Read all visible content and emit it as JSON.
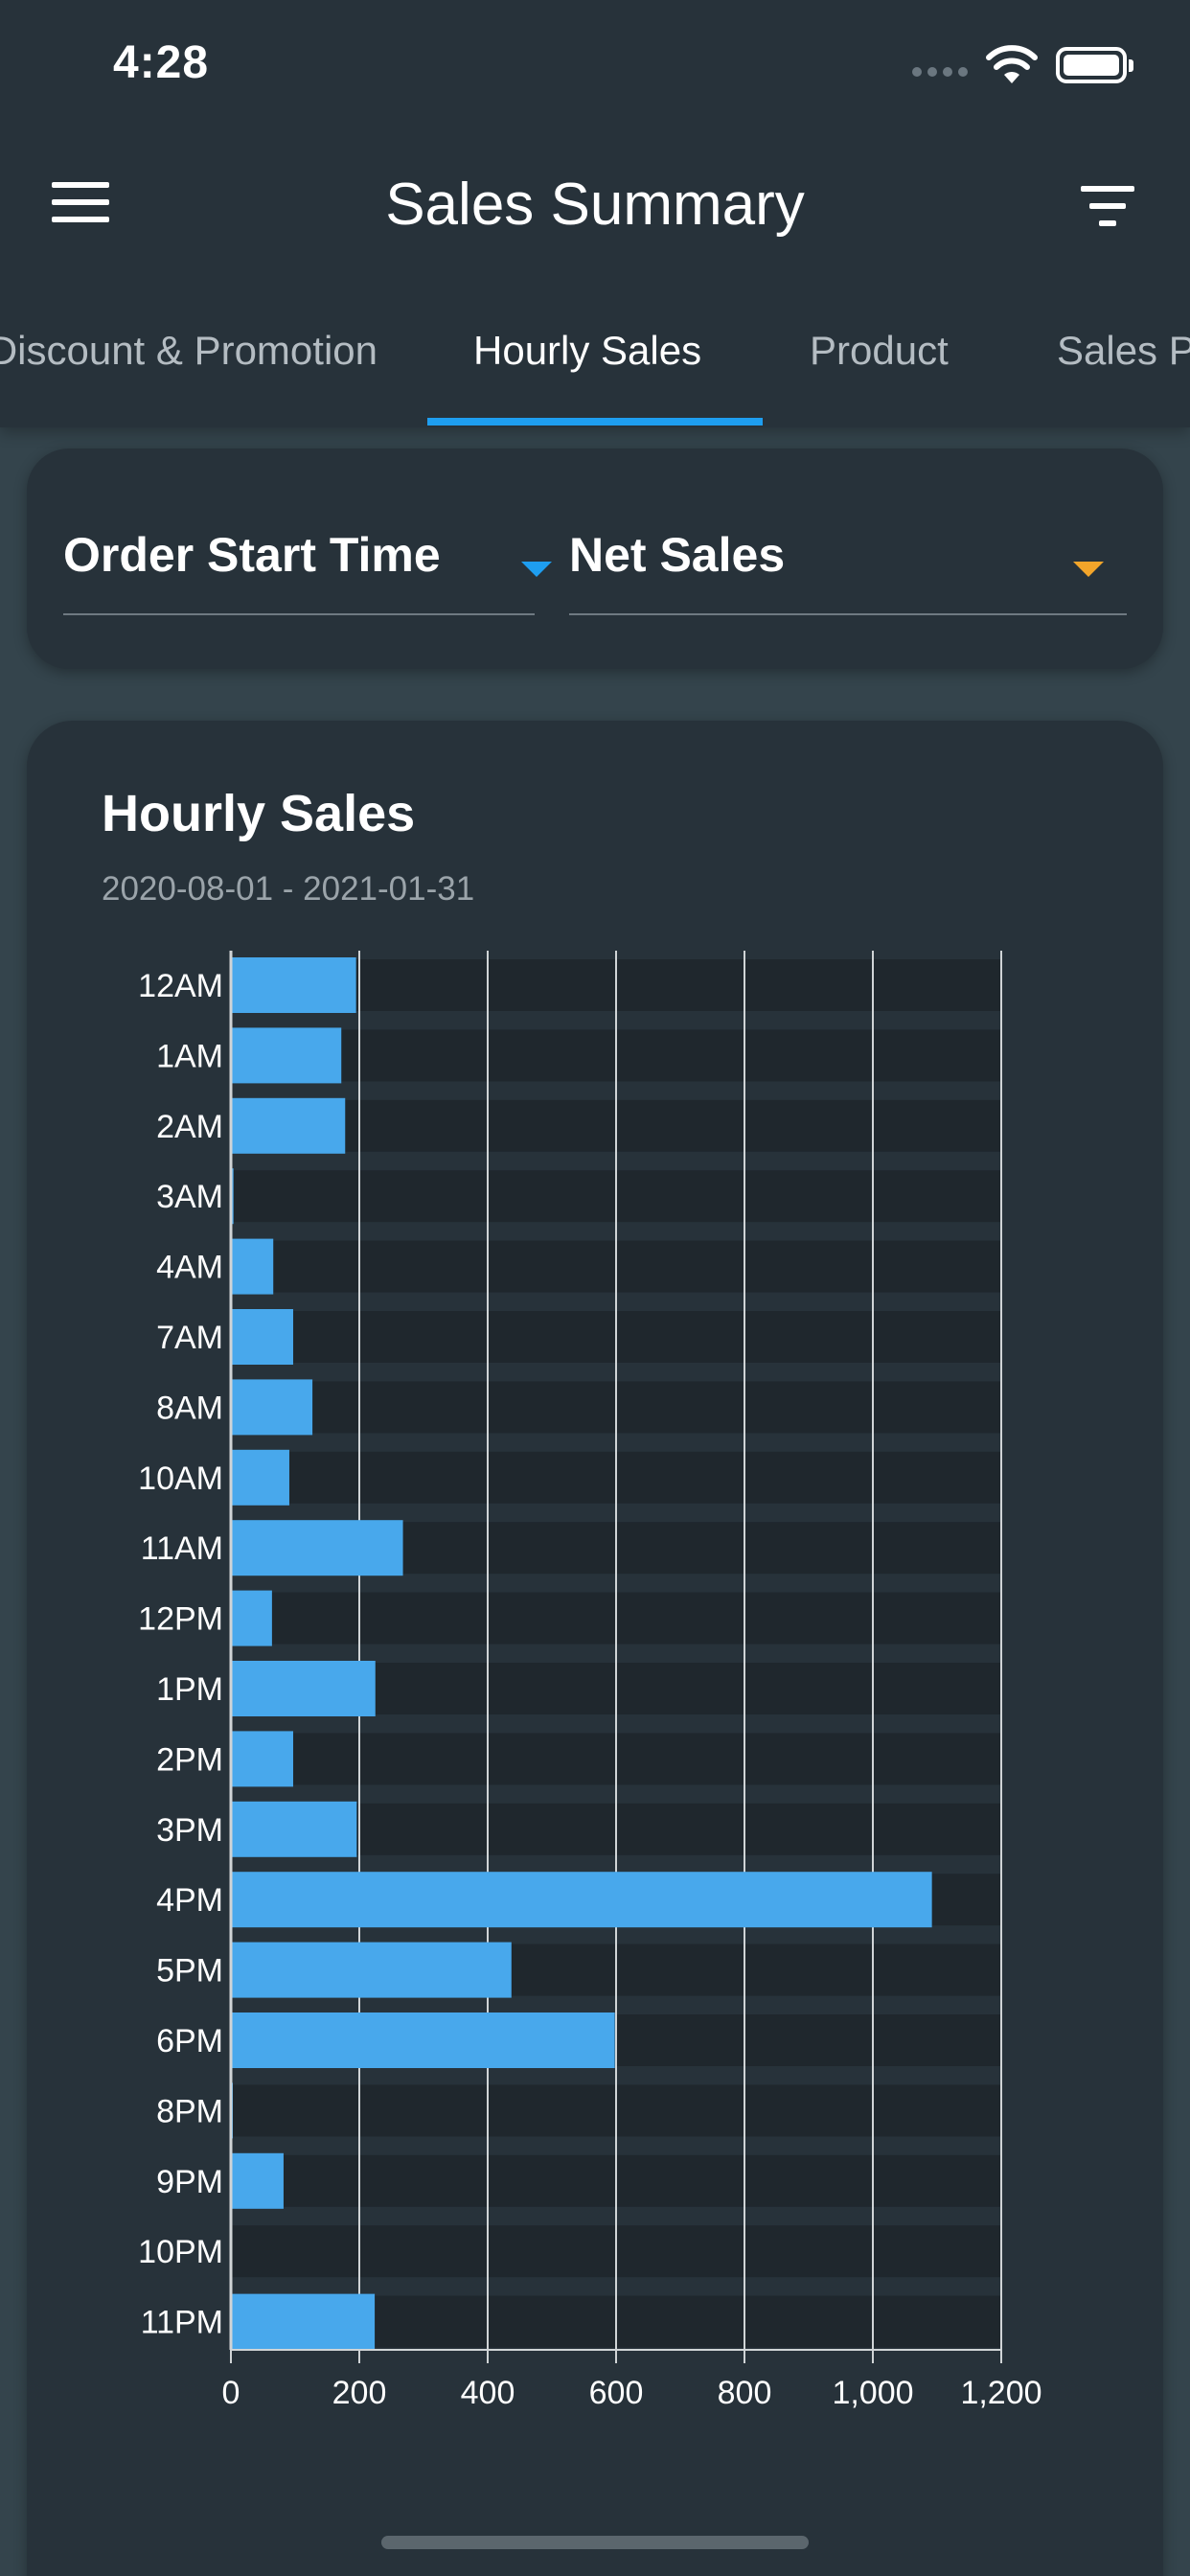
{
  "status_bar": {
    "time": "4:28"
  },
  "header": {
    "title": "Sales Summary"
  },
  "tabs": [
    {
      "label": "Discount & Promotion"
    },
    {
      "label": "Hourly Sales"
    },
    {
      "label": "Product"
    },
    {
      "label": "Sales P"
    }
  ],
  "filters": {
    "group_by": "Order Start Time",
    "metric": "Net Sales"
  },
  "colors": {
    "accent": "#1e9ef0",
    "bar": "#48a8ec",
    "caret_secondary": "#f3a52a"
  },
  "chart_data": {
    "type": "bar",
    "orientation": "horizontal",
    "title": "Hourly Sales",
    "subtitle": "2020-08-01 - 2021-01-31",
    "categories": [
      "12AM",
      "1AM",
      "2AM",
      "3AM",
      "4AM",
      "7AM",
      "8AM",
      "10AM",
      "11AM",
      "12PM",
      "1PM",
      "2PM",
      "3PM",
      "4PM",
      "5PM",
      "6PM",
      "8PM",
      "9PM",
      "10PM",
      "11PM"
    ],
    "values": [
      195,
      172,
      178,
      4,
      66,
      97,
      127,
      91,
      268,
      64,
      225,
      97,
      196,
      1092,
      437,
      598,
      3,
      82,
      0,
      224
    ],
    "xlim": [
      0,
      1200
    ],
    "xticks": [
      0,
      200,
      400,
      600,
      800,
      1000,
      1200
    ],
    "xtick_labels": [
      "0",
      "200",
      "400",
      "600",
      "800",
      "1,000",
      "1,200"
    ],
    "grid": true
  }
}
